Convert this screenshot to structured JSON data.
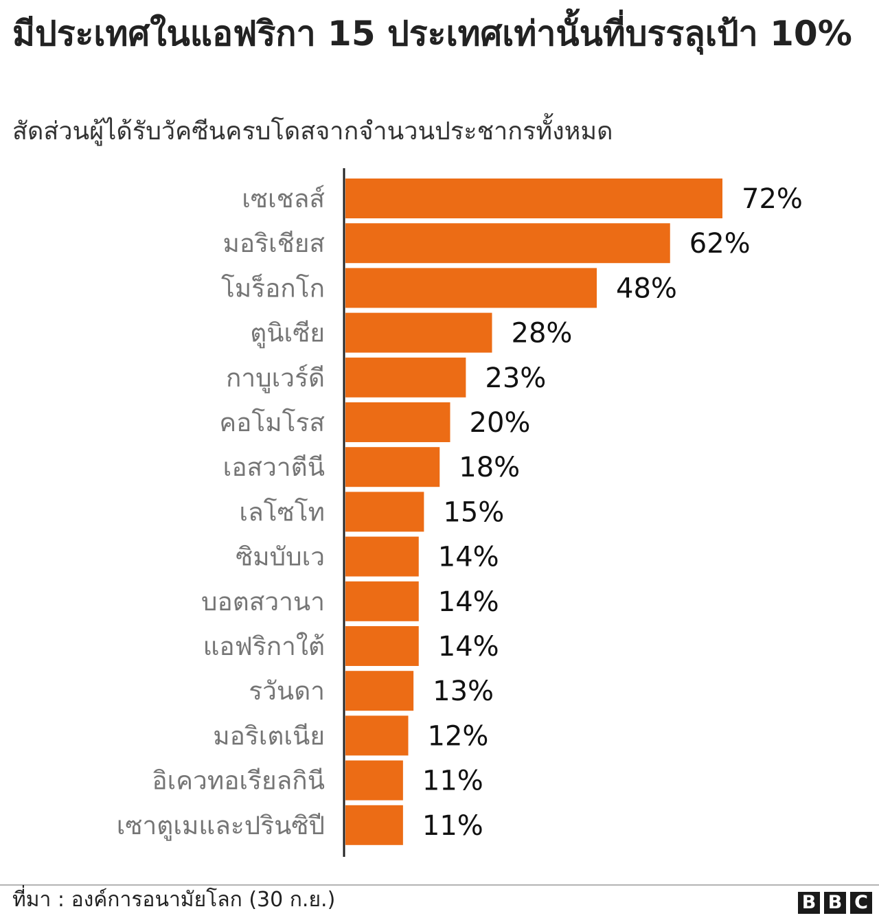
{
  "title": "มีประเทศในแอฟริกา 15 ประเทศเท่านั้นที่บรรลุเป้า 10%",
  "subtitle": "สัดส่วนผู้ได้รับวัคซีนครบโดสจากจำนวนประชากรทั้งหมด",
  "source": "ที่มา : องค์การอนามัยโลก (30 ก.ย.)",
  "logo": [
    "B",
    "B",
    "C"
  ],
  "colors": {
    "bar": "#ec6c15",
    "axis": "#222222",
    "category_label": "#757575",
    "value_label": "#111111"
  },
  "chart_data": {
    "type": "bar",
    "orientation": "horizontal",
    "value_suffix": "%",
    "xlim": [
      0,
      72
    ],
    "grid": false,
    "categories": [
      "เซเชลส์",
      "มอริเชียส",
      "โมร็อกโก",
      "ตูนิเซีย",
      "กาบูเวร์ดี",
      "คอโมโรส",
      "เอสวาตีนี",
      "เลโซโท",
      "ซิมบับเว",
      "บอตสวานา",
      "แอฟริกาใต้",
      "รวันดา",
      "มอริเตเนีย",
      "อิเควทอเรียลกินี",
      "เซาตูเมและปรินซิปี"
    ],
    "values": [
      72,
      62,
      48,
      28,
      23,
      20,
      18,
      15,
      14,
      14,
      14,
      13,
      12,
      11,
      11
    ],
    "value_labels": [
      "72%",
      "62%",
      "48%",
      "28%",
      "23%",
      "20%",
      "18%",
      "15%",
      "14%",
      "14%",
      "14%",
      "13%",
      "12%",
      "11%",
      "11%"
    ]
  }
}
